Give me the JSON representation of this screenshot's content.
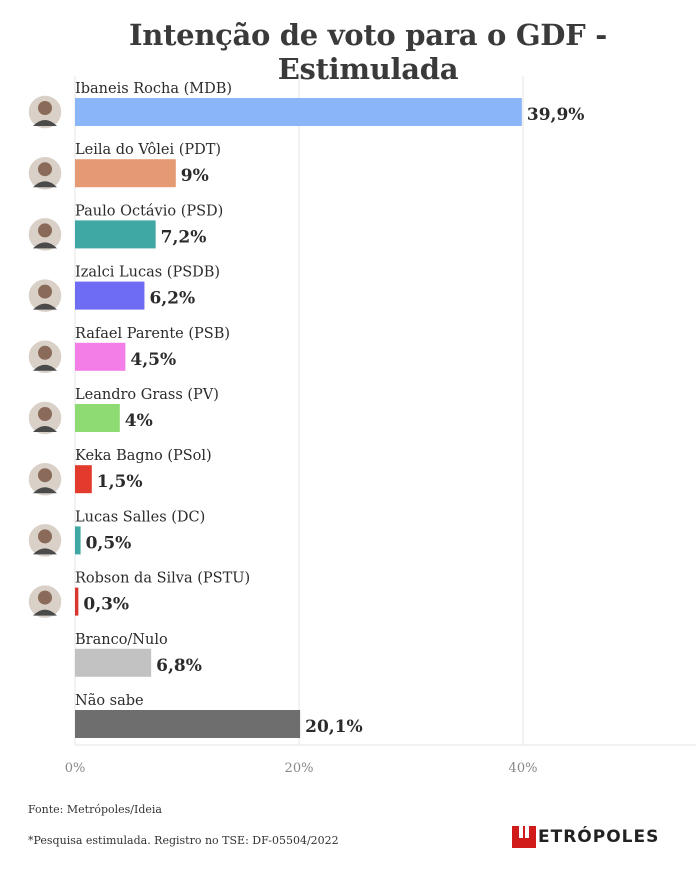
{
  "title": "Intenção de voto para o GDF - Estimulada",
  "footer": {
    "source": "Fonte: Metrópoles/Ideia",
    "note": "*Pesquisa estimulada. Registro no TSE: DF-05504/2022"
  },
  "logo": {
    "text": "ETRÓPOLES"
  },
  "chart_data": {
    "type": "bar",
    "orientation": "horizontal",
    "title": "Intenção de voto para o GDF - Estimulada",
    "xlim": [
      0,
      55
    ],
    "grid": true,
    "ticks": [
      {
        "value": 0,
        "label": "0%"
      },
      {
        "value": 20,
        "label": "20%"
      },
      {
        "value": 40,
        "label": "40%"
      }
    ],
    "bars": [
      {
        "label": "Ibaneis Rocha (MDB)",
        "value": 39.9,
        "value_label": "39,9%",
        "color": "#8ab6f9",
        "photo": true
      },
      {
        "label": "Leila do Vôlei (PDT)",
        "value": 9,
        "value_label": "9%",
        "color": "#e59a74",
        "photo": true
      },
      {
        "label": "Paulo Octávio (PSD)",
        "value": 7.2,
        "value_label": "7,2%",
        "color": "#3fa8a4",
        "photo": true
      },
      {
        "label": "Izalci Lucas (PSDB)",
        "value": 6.2,
        "value_label": "6,2%",
        "color": "#6f6cf4",
        "photo": true
      },
      {
        "label": "Rafael Parente (PSB)",
        "value": 4.5,
        "value_label": "4,5%",
        "color": "#f37ee8",
        "photo": true
      },
      {
        "label": "Leandro Grass (PV)",
        "value": 4,
        "value_label": "4%",
        "color": "#8fdb73",
        "photo": true
      },
      {
        "label": "Keka Bagno (PSol)",
        "value": 1.5,
        "value_label": "1,5%",
        "color": "#e23a2c",
        "photo": true
      },
      {
        "label": "Lucas Salles (DC)",
        "value": 0.5,
        "value_label": "0,5%",
        "color": "#3fa8a4",
        "photo": true
      },
      {
        "label": "Robson da Silva (PSTU)",
        "value": 0.3,
        "value_label": "0,3%",
        "color": "#d8362e",
        "photo": true
      },
      {
        "label": "Branco/Nulo",
        "value": 6.8,
        "value_label": "6,8%",
        "color": "#c2c2c2",
        "photo": false
      },
      {
        "label": "Não sabe",
        "value": 20.1,
        "value_label": "20,1%",
        "color": "#6e6e6e",
        "photo": false
      }
    ]
  }
}
